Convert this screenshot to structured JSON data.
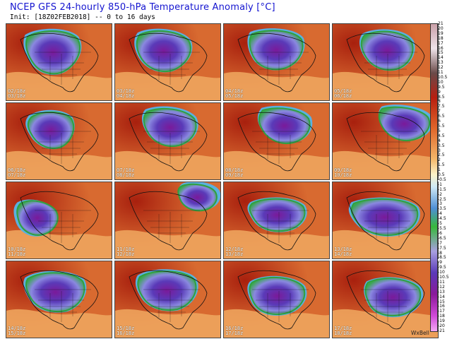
{
  "header": {
    "title": "NCEP GFS 24-hourly 850-hPa Temperature Anomaly [°C]",
    "subtitle": "Init: [18Z02FEB2018] -- 0 to 16 days"
  },
  "panels": [
    {
      "valid_from": "02/18z",
      "valid_to": "03/18z"
    },
    {
      "valid_from": "03/18z",
      "valid_to": "04/18z"
    },
    {
      "valid_from": "04/18z",
      "valid_to": "05/18z"
    },
    {
      "valid_from": "05/18z",
      "valid_to": "06/18z"
    },
    {
      "valid_from": "06/18z",
      "valid_to": "07/18z"
    },
    {
      "valid_from": "07/18z",
      "valid_to": "08/18z"
    },
    {
      "valid_from": "08/18z",
      "valid_to": "09/18z"
    },
    {
      "valid_from": "09/18z",
      "valid_to": "10/18z"
    },
    {
      "valid_from": "10/18z",
      "valid_to": "11/18z"
    },
    {
      "valid_from": "11/18z",
      "valid_to": "12/18z"
    },
    {
      "valid_from": "12/18z",
      "valid_to": "13/18z"
    },
    {
      "valid_from": "13/18z",
      "valid_to": "14/18z"
    },
    {
      "valid_from": "14/18z",
      "valid_to": "15/18z"
    },
    {
      "valid_from": "15/18z",
      "valid_to": "16/18z"
    },
    {
      "valid_from": "16/18z",
      "valid_to": "17/18z"
    },
    {
      "valid_from": "17/18z",
      "valid_to": "18/18z"
    }
  ],
  "colorbar": {
    "ticks": [
      "21",
      "20",
      "19",
      "18",
      "17",
      "16",
      "15",
      "14",
      "13",
      "12",
      "11",
      "10.5",
      "10",
      "9.5",
      "9",
      "8.5",
      "8",
      "7.5",
      "7",
      "6.5",
      "6",
      "5.5",
      "5",
      "4.5",
      "4",
      "3.5",
      "3",
      "2.5",
      "2",
      "1.5",
      "1",
      "0.5",
      "-0.5",
      "-1",
      "-1.5",
      "-2",
      "-2.5",
      "-3",
      "-3.5",
      "-4",
      "-4.5",
      "-5",
      "-5.5",
      "-6",
      "-6.5",
      "-7",
      "-7.5",
      "-8",
      "-8.5",
      "-9",
      "-9.5",
      "-10",
      "-10.5",
      "-11",
      "-12",
      "-13",
      "-14",
      "-15",
      "-16",
      "-17",
      "-18",
      "-19",
      "-20",
      "-21"
    ],
    "colors": {
      "warm_extreme": "#f0e0e8",
      "warm_dark": "#604040",
      "warm_red": "#b82010",
      "warm_orange": "#e06a2a",
      "warm_light": "#f2b46a",
      "neutral": "#fbf3c8",
      "cool_light": "#a6d6ee",
      "cool_blue": "#4f8fd6",
      "cool_green": "#38b83c",
      "cool_purple": "#5a3ab8",
      "cold_magenta": "#c030c8",
      "cold_extreme": "#ee88ee"
    }
  },
  "branding": "WxBell"
}
